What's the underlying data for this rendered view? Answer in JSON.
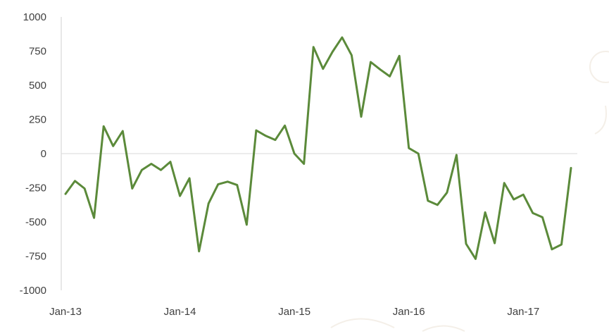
{
  "chart_data": {
    "type": "line",
    "title": "",
    "xlabel": "",
    "ylabel": "",
    "ylim": [
      -1000,
      1000
    ],
    "yticks": [
      1000,
      750,
      500,
      250,
      0,
      -250,
      -500,
      -750,
      -1000
    ],
    "ytick_labels": [
      "1000",
      "750",
      "500",
      "250",
      "0",
      "-250",
      "-500",
      "-750",
      "-1000"
    ],
    "xticks": [
      "Jan-13",
      "Jan-14",
      "Jan-15",
      "Jan-16",
      "Jan-17"
    ],
    "x_start": "2013-01",
    "x_end": "2017-06",
    "grid": false,
    "legend": "none",
    "line_color": "#5b8a3a",
    "series": [
      {
        "values": [
          -295,
          -200,
          -255,
          -470,
          200,
          55,
          165,
          -255,
          -120,
          -75,
          -120,
          -60,
          -310,
          -180,
          -715,
          -365,
          -225,
          -205,
          -230,
          -520,
          170,
          130,
          100,
          205,
          0,
          -75,
          780,
          620,
          745,
          850,
          720,
          270,
          670,
          615,
          565,
          715,
          40,
          0,
          -345,
          -375,
          -285,
          -10,
          -660,
          -770,
          -430,
          -655,
          -215,
          -335,
          -300,
          -435,
          -465,
          -700,
          -665,
          -105
        ]
      }
    ]
  }
}
